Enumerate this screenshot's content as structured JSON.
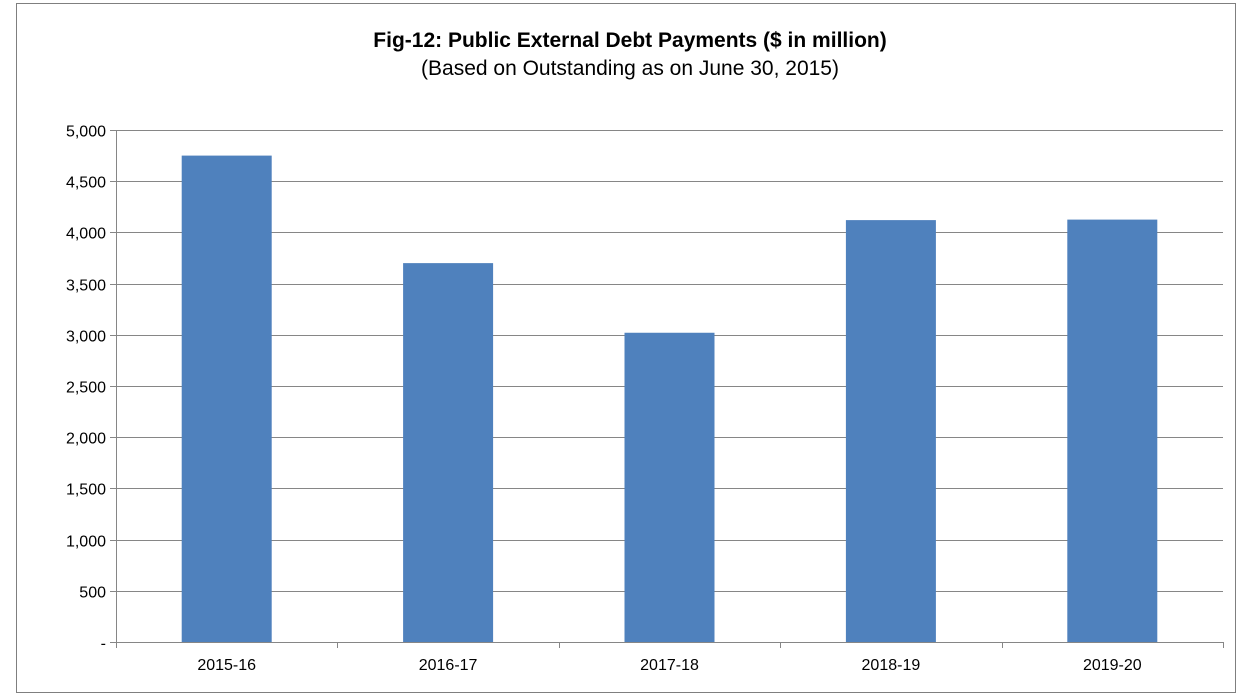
{
  "chart_data": {
    "type": "bar",
    "title": "Fig-12: Public External Debt Payments ($ in million)",
    "subtitle": "(Based on Outstanding as on June 30, 2015)",
    "categories": [
      "2015-16",
      "2016-17",
      "2017-18",
      "2018-19",
      "2019-20"
    ],
    "values": [
      4750,
      3700,
      3020,
      4120,
      4125
    ],
    "ylim": [
      0,
      5000
    ],
    "yticks": [
      0,
      500,
      1000,
      1500,
      2000,
      2500,
      3000,
      3500,
      4000,
      4500,
      5000
    ],
    "ytick_labels": [
      "-",
      "500",
      "1,000",
      "1,500",
      "2,000",
      "2,500",
      "3,000",
      "3,500",
      "4,000",
      "4,500",
      "5,000"
    ],
    "grid": "horizontal",
    "legend": "none",
    "bar_color": "#4f81bd",
    "gridline_color": "#868686"
  }
}
